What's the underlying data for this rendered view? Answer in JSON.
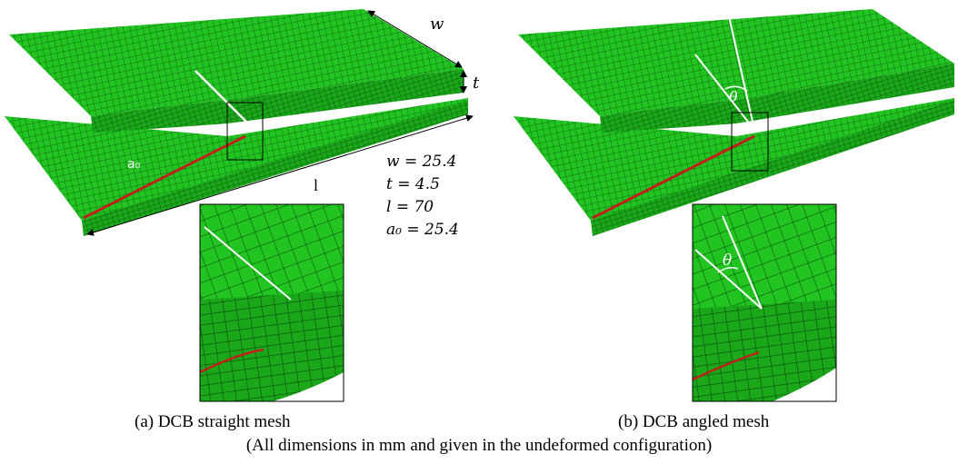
{
  "figure": {
    "panel_a": {
      "labels": {
        "w": "w",
        "t": "t",
        "l": "l",
        "a0": "a₀"
      },
      "dimensions": [
        "w = 25.4",
        "t = 4.5",
        "l = 70",
        "a₀ = 25.4"
      ],
      "caption": "(a) DCB straight mesh"
    },
    "panel_b": {
      "labels": {
        "theta_main": "θ",
        "theta_inset": "θ"
      },
      "caption": "(b) DCB angled mesh"
    },
    "note": "(All dimensions in mm and given in the undeformed configuration)"
  }
}
